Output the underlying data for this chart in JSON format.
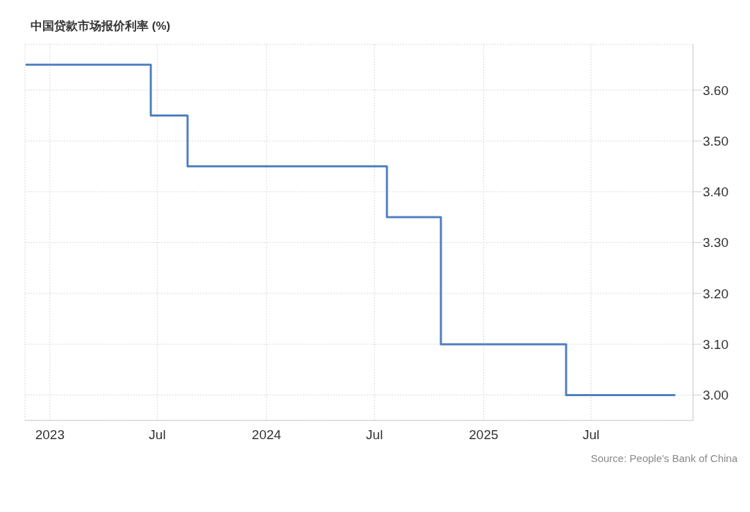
{
  "chart_data": {
    "type": "step",
    "title": "中国贷款市场报价利率 (%)",
    "x": [
      "2022-11-21",
      "2023-06-20",
      "2023-08-21",
      "2024-07-22",
      "2024-10-21",
      "2025-05-20",
      "2025-11-20"
    ],
    "series": [
      {
        "color": "#4f7fbf",
        "values": [
          3.65,
          3.55,
          3.45,
          3.35,
          3.1,
          3.0,
          3.0
        ]
      }
    ],
    "xlim": [
      "2022-11-20",
      "2025-12-20"
    ],
    "xticks": [
      {
        "value": "2023-01-01",
        "label": "2023"
      },
      {
        "value": "2023-07-01",
        "label": "Jul"
      },
      {
        "value": "2024-01-01",
        "label": "2024"
      },
      {
        "value": "2024-07-01",
        "label": "Jul"
      },
      {
        "value": "2025-01-01",
        "label": "2025"
      },
      {
        "value": "2025-07-01",
        "label": "Jul"
      }
    ],
    "ylim": [
      2.95,
      3.69
    ],
    "yticks": [
      {
        "value": 3.0,
        "label": "3.00"
      },
      {
        "value": 3.1,
        "label": "3.10"
      },
      {
        "value": 3.2,
        "label": "3.20"
      },
      {
        "value": 3.3,
        "label": "3.30"
      },
      {
        "value": 3.4,
        "label": "3.40"
      },
      {
        "value": 3.5,
        "label": "3.50"
      },
      {
        "value": 3.6,
        "label": "3.60"
      }
    ],
    "grid": true,
    "marker": "none",
    "line_style": "solid",
    "annotations": [
      "Source: People's Bank of China"
    ]
  }
}
